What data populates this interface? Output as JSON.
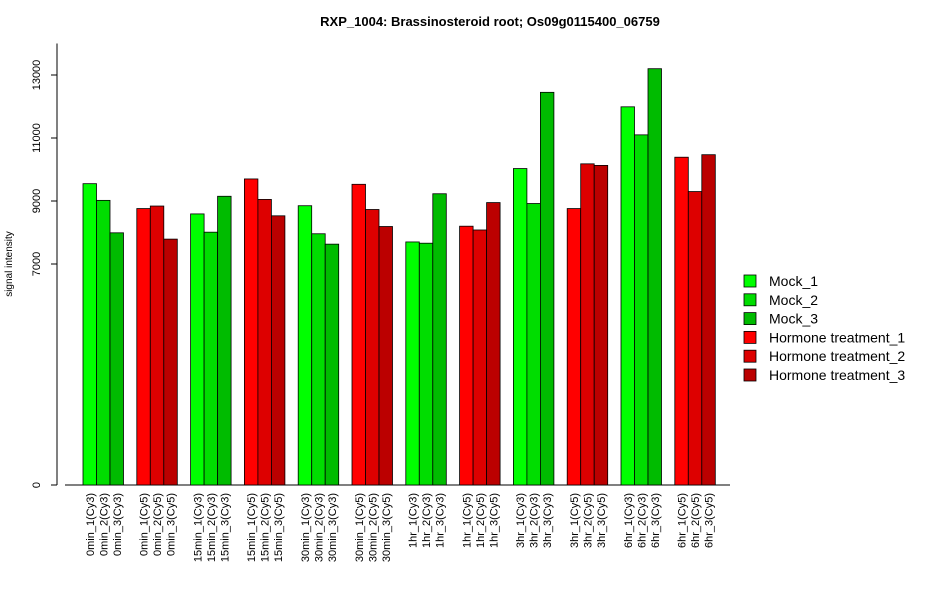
{
  "chart_data": {
    "type": "bar",
    "title": "RXP_1004: Brassinosteroid root; Os09g0115400_06759",
    "xlabel": "",
    "ylabel": "signal intensity",
    "y_scale": "piecewise: linear 0 to 7000 compressed, linear from 7000 upward",
    "y_ticks": [
      0,
      7000,
      9000,
      11000,
      13000
    ],
    "ylim": [
      0,
      14000
    ],
    "legend_position": "right",
    "series": [
      {
        "name": "Mock_1",
        "color": "#00ff00"
      },
      {
        "name": "Mock_2",
        "color": "#00dd00"
      },
      {
        "name": "Mock_3",
        "color": "#00bb00"
      },
      {
        "name": "Hormone treatment_1",
        "color": "#ff0000"
      },
      {
        "name": "Hormone treatment_2",
        "color": "#dd0000"
      },
      {
        "name": "Hormone treatment_3",
        "color": "#bb0000"
      }
    ],
    "groups": [
      {
        "labels": [
          "0min_1(Cy3)",
          "0min_2(Cy3)",
          "0min_3(Cy3)"
        ],
        "values": [
          9550,
          9020,
          7990
        ],
        "series": [
          0,
          1,
          2
        ]
      },
      {
        "labels": [
          "0min_1(Cy5)",
          "0min_2(Cy5)",
          "0min_3(Cy5)"
        ],
        "values": [
          8760,
          8840,
          7790
        ],
        "series": [
          3,
          4,
          5
        ]
      },
      {
        "labels": [
          "15min_1(Cy3)",
          "15min_2(Cy3)",
          "15min_3(Cy3)"
        ],
        "values": [
          8590,
          8010,
          9150
        ],
        "series": [
          0,
          1,
          2
        ]
      },
      {
        "labels": [
          "15min_1(Cy5)",
          "15min_2(Cy5)",
          "15min_3(Cy5)"
        ],
        "values": [
          9700,
          9050,
          8530
        ],
        "series": [
          3,
          4,
          5
        ]
      },
      {
        "labels": [
          "30min_1(Cy3)",
          "30min_2(Cy3)",
          "30min_3(Cy3)"
        ],
        "values": [
          8850,
          7960,
          7630
        ],
        "series": [
          0,
          1,
          2
        ]
      },
      {
        "labels": [
          "30min_1(Cy5)",
          "30min_2(Cy5)",
          "30min_3(Cy5)"
        ],
        "values": [
          9530,
          8730,
          8190
        ],
        "series": [
          3,
          4,
          5
        ]
      },
      {
        "labels": [
          "1hr_1(Cy3)",
          "1hr_2(Cy3)",
          "1hr_3(Cy3)"
        ],
        "values": [
          7700,
          7660,
          9230
        ],
        "series": [
          0,
          1,
          2
        ]
      },
      {
        "labels": [
          "1hr_1(Cy5)",
          "1hr_2(Cy5)",
          "1hr_3(Cy5)"
        ],
        "values": [
          8200,
          8080,
          8950
        ],
        "series": [
          3,
          4,
          5
        ]
      },
      {
        "labels": [
          "3hr_1(Cy3)",
          "3hr_2(Cy3)",
          "3hr_3(Cy3)"
        ],
        "values": [
          10030,
          8920,
          12450
        ],
        "series": [
          0,
          1,
          2
        ]
      },
      {
        "labels": [
          "3hr_1(Cy5)",
          "3hr_2(Cy5)",
          "3hr_3(Cy5)"
        ],
        "values": [
          8760,
          10180,
          10130
        ],
        "series": [
          3,
          4,
          5
        ]
      },
      {
        "labels": [
          "6hr_1(Cy3)",
          "6hr_2(Cy3)",
          "6hr_3(Cy3)"
        ],
        "values": [
          11990,
          11100,
          13200
        ],
        "series": [
          0,
          1,
          2
        ]
      },
      {
        "labels": [
          "6hr_1(Cy5)",
          "6hr_2(Cy5)",
          "6hr_3(Cy5)"
        ],
        "values": [
          10390,
          9300,
          10470
        ],
        "series": [
          3,
          4,
          5
        ]
      }
    ]
  }
}
